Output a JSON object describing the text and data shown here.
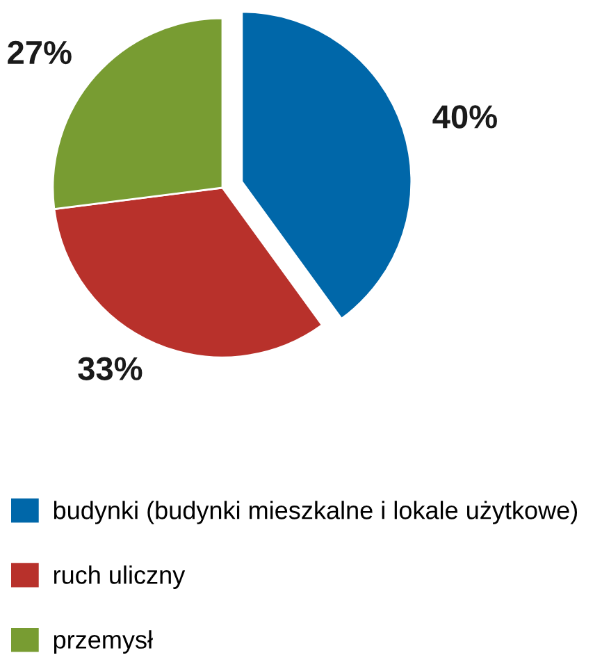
{
  "chart_data": {
    "type": "pie",
    "categories": [
      "budynki (budynki mieszkalne i lokale użytkowe)",
      "ruch uliczny",
      "przemysł"
    ],
    "values": [
      40,
      33,
      27
    ],
    "colors": [
      "#0067a9",
      "#b8312b",
      "#789c32"
    ],
    "value_labels": [
      "40%",
      "33%",
      "27%"
    ],
    "legend": "bottom"
  }
}
